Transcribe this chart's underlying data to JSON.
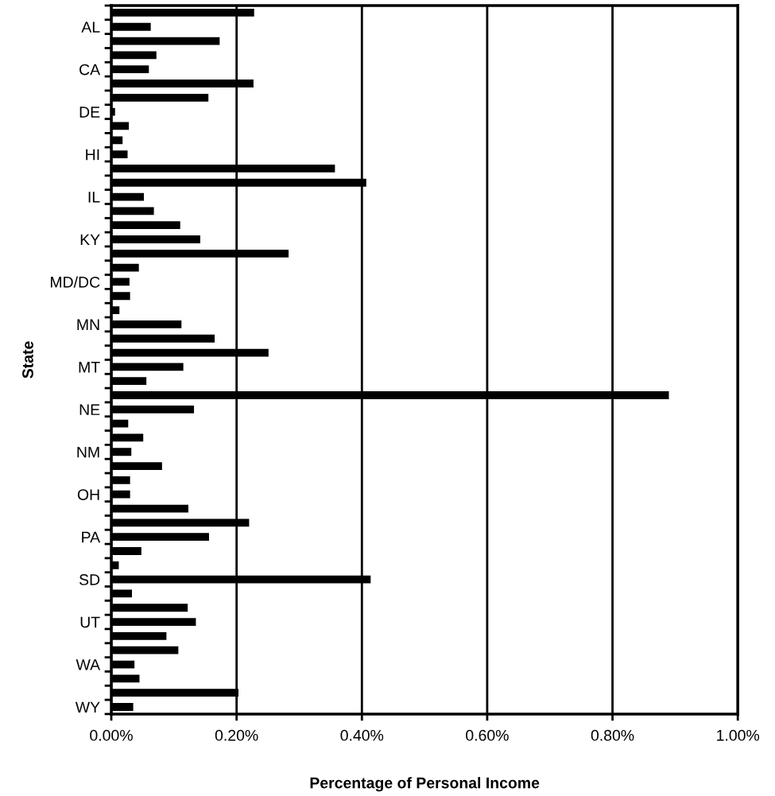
{
  "chart_data": {
    "type": "bar",
    "orientation": "horizontal",
    "xlabel": "Percentage of Personal Income",
    "ylabel": "State",
    "categories": [
      null,
      "AL",
      null,
      null,
      "CA",
      null,
      null,
      "DE",
      null,
      null,
      "HI",
      null,
      null,
      "IL",
      null,
      null,
      "KY",
      null,
      null,
      "MD/DC",
      null,
      null,
      "MN",
      null,
      null,
      "MT",
      null,
      null,
      "NE",
      null,
      null,
      "NM",
      null,
      null,
      "OH",
      null,
      null,
      "PA",
      null,
      null,
      "SD",
      null,
      null,
      "UT",
      null,
      null,
      "WA",
      null,
      null,
      "WY"
    ],
    "values": [
      0.228,
      0.063,
      0.173,
      0.072,
      0.06,
      0.227,
      0.155,
      0.006,
      0.028,
      0.018,
      0.026,
      0.357,
      0.407,
      0.052,
      0.068,
      0.11,
      0.142,
      0.283,
      0.044,
      0.029,
      0.03,
      0.013,
      0.112,
      0.165,
      0.251,
      0.115,
      0.056,
      0.89,
      0.132,
      0.027,
      0.051,
      0.032,
      0.081,
      0.03,
      0.03,
      0.123,
      0.22,
      0.156,
      0.048,
      0.012,
      0.414,
      0.033,
      0.122,
      0.135,
      0.088,
      0.107,
      0.037,
      0.045,
      0.203,
      0.035
    ],
    "color": "#000000",
    "xlim": [
      0,
      1
    ],
    "xticks": [
      {
        "value": 0,
        "label": "0.00%"
      },
      {
        "value": 0.2,
        "label": "0.20%"
      },
      {
        "value": 0.4,
        "label": "0.40%"
      },
      {
        "value": 0.6,
        "label": "0.60%"
      },
      {
        "value": 0.8,
        "label": "0.80%"
      },
      {
        "value": 1,
        "label": "1.00%"
      }
    ],
    "grid": "x"
  }
}
